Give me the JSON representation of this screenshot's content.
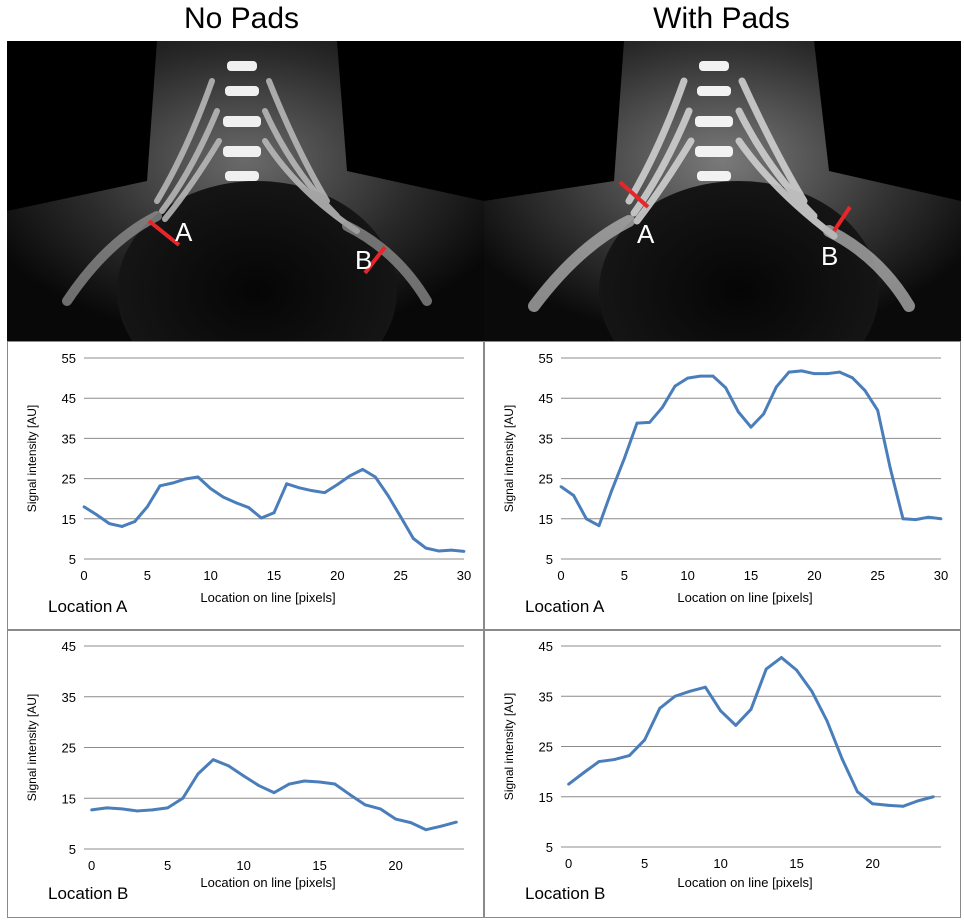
{
  "titles": {
    "left": "No Pads",
    "right": "With Pads"
  },
  "images": [
    {
      "marker_a": "A",
      "marker_b": "B",
      "line_color": "#e8262a"
    },
    {
      "marker_a": "A",
      "marker_b": "B",
      "line_color": "#e8262a"
    }
  ],
  "line_color": "#4a7ebb",
  "chart_data": [
    {
      "type": "line",
      "panel": "No Pads",
      "location_label": "Location A",
      "xlabel": "Location on line [pixels]",
      "ylabel": "Signal intensity [AU]",
      "xlim": [
        0,
        30
      ],
      "ylim": [
        5,
        55
      ],
      "xticks": [
        0,
        5,
        10,
        15,
        20,
        25,
        30
      ],
      "yticks": [
        5,
        15,
        25,
        35,
        45,
        55
      ],
      "x": [
        0,
        1,
        2,
        3,
        4,
        5,
        6,
        7,
        8,
        9,
        10,
        11,
        12,
        13,
        14,
        15,
        16,
        17,
        18,
        19,
        20,
        21,
        22,
        23,
        24,
        25,
        26,
        27,
        28,
        29,
        30
      ],
      "values": [
        18,
        16,
        13.8,
        13.1,
        14.3,
        18,
        23.2,
        23.9,
        24.9,
        25.4,
        22.5,
        20.4,
        19,
        17.8,
        15.2,
        16.5,
        23.7,
        22.7,
        22,
        21.5,
        23.5,
        25.7,
        27.3,
        25.4,
        20.8,
        15.5,
        10.1,
        7.7,
        7,
        7.2,
        6.9
      ]
    },
    {
      "type": "line",
      "panel": "With Pads",
      "location_label": "Location A",
      "xlabel": "Location on line [pixels]",
      "ylabel": "Signal intensity [AU]",
      "xlim": [
        0,
        30
      ],
      "ylim": [
        5,
        55
      ],
      "xticks": [
        0,
        5,
        10,
        15,
        20,
        25,
        30
      ],
      "yticks": [
        5,
        15,
        25,
        35,
        45,
        55
      ],
      "x": [
        0,
        1,
        2,
        3,
        4,
        5,
        6,
        7,
        8,
        9,
        10,
        11,
        12,
        13,
        14,
        15,
        16,
        17,
        18,
        19,
        20,
        21,
        22,
        23,
        24,
        25,
        26,
        27,
        28,
        29,
        30
      ],
      "values": [
        23,
        20.8,
        15,
        13.3,
        22,
        30,
        38.8,
        39,
        42.7,
        48,
        50,
        50.5,
        50.5,
        47.6,
        41.6,
        37.8,
        41.1,
        47.8,
        51.5,
        51.8,
        51.1,
        51.1,
        51.5,
        50.1,
        46.9,
        42,
        27.5,
        15,
        14.8,
        15.4,
        15
      ]
    },
    {
      "type": "line",
      "panel": "No Pads",
      "location_label": "Location B",
      "xlabel": "Location on line [pixels]",
      "ylabel": "Signal intensity [AU]",
      "xlim": [
        -0.5,
        24.5
      ],
      "ylim": [
        5,
        45
      ],
      "xticks": [
        0,
        5,
        10,
        15,
        20
      ],
      "yticks": [
        5,
        15,
        25,
        35,
        45
      ],
      "x": [
        0,
        1,
        2,
        3,
        4,
        5,
        6,
        7,
        8,
        9,
        10,
        11,
        12,
        13,
        14,
        15,
        16,
        17,
        18,
        19,
        20,
        21,
        22,
        23,
        24
      ],
      "values": [
        12.7,
        13.1,
        12.9,
        12.5,
        12.7,
        13.1,
        15,
        19.8,
        22.6,
        21.4,
        19.4,
        17.5,
        16.1,
        17.8,
        18.4,
        18.2,
        17.8,
        15.7,
        13.7,
        12.9,
        10.9,
        10.2,
        8.8,
        9.5,
        10.3
      ]
    },
    {
      "type": "line",
      "panel": "With Pads",
      "location_label": "Location B",
      "xlabel": "Location on line [pixels]",
      "ylabel": "Signal intensity [AU]",
      "xlim": [
        -0.5,
        24.5
      ],
      "ylim": [
        5,
        45
      ],
      "xticks": [
        0,
        5,
        10,
        15,
        20
      ],
      "yticks": [
        5,
        15,
        25,
        35,
        45
      ],
      "x": [
        0,
        1,
        2,
        3,
        4,
        5,
        6,
        7,
        8,
        9,
        10,
        11,
        12,
        13,
        14,
        15,
        16,
        17,
        18,
        19,
        20,
        21,
        22,
        23,
        24
      ],
      "values": [
        17.5,
        19.8,
        22,
        22.4,
        23.2,
        26.3,
        32.6,
        35,
        36,
        36.8,
        32.1,
        29.2,
        32.4,
        40.4,
        42.7,
        40.2,
        36,
        30.1,
        22.5,
        16,
        13.6,
        13.3,
        13.1,
        14.2,
        15
      ]
    }
  ]
}
